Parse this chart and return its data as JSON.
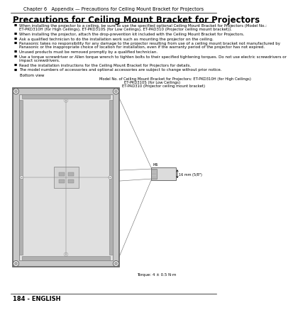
{
  "bg_color": "#ffffff",
  "header_text": "Chapter 6   Appendix — Precautions for Ceiling Mount Bracket for Projectors",
  "title": "Precautions for Ceiling Mount Bracket for Projectors",
  "bullets": [
    "When installing the projector to a ceiling, be sure to use the specified optional Ceiling Mount Bracket for Projectors (Model No.:\nET-PKD310H (for High Ceilings), ET-PKD310S (for Low Ceilings), ET-PAD310 (Projector ceiling mount bracket)).",
    "When installing the projector, attach the drop-prevention kit included with the Ceiling Mount Bracket for Projectors.",
    "Ask a qualified technician to do the installation work such as mounting the projector on the ceiling.",
    "Panasonic takes no responsibility for any damage to the projector resulting from use of a ceiling mount bracket not manufactured by\nPanasonic or the inappropriate choice of location for installation, even if the warranty period of the projector has not expired.",
    "Unused products must be removed promptly by a qualified technician.",
    "Use a torque screwdriver or Allen torque wrench to tighten bolts to their specified tightening torques. Do not use electric screwdrivers or\nimpact screwdrivers.",
    "Read the installation instructions for the Ceiling Mount Bracket for Projectors for details.",
    "The model numbers of accessories and optional accessories are subject to change without prior notice."
  ],
  "bottom_view_label": "Bottom view",
  "model_label_line1": "Model No. of Ceiling Mount Bracket for Projectors: ET-PKD310H (for High Ceilings)",
  "model_label_line2": "ET-PKD310S (for Low Ceilings)",
  "model_label_line3": "ET-PAD310 (Projector ceiling mount bracket)",
  "torque_label": "Torque: 4 ± 0.5 N·m",
  "m6_label": "M6",
  "dim_label": "16 mm (5/8\")",
  "footer": "184 - ENGLISH",
  "header_fontsize": 4.8,
  "title_fontsize": 8.5,
  "bullet_fontsize": 4.0,
  "label_fontsize": 3.8,
  "footer_fontsize": 6.0,
  "gray_light": "#d8d8d8",
  "gray_mid": "#b0b0b0",
  "gray_dark": "#808080",
  "gray_border": "#606060"
}
